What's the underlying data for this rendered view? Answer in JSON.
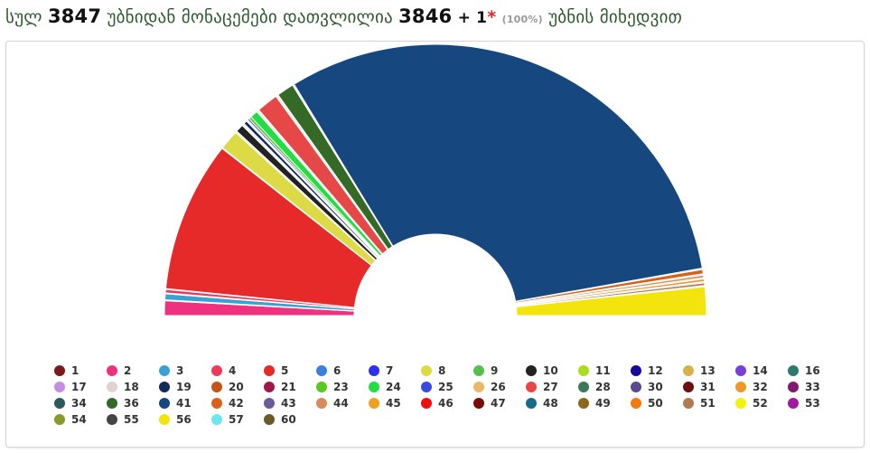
{
  "header": {
    "w1": "სულ",
    "total_districts": "3847",
    "w2": "უბნიდან მონაცემები დათვლილია",
    "counted": "3846",
    "plus": "+ 1",
    "star": "*",
    "percent": "(100%)",
    "w3": "უბნის მიხედვით"
  },
  "chart_data": {
    "type": "pie",
    "shape": "half-donut",
    "start": "left",
    "series": [
      {
        "name": "2",
        "value": 1.7,
        "color": "#f0317f"
      },
      {
        "name": "",
        "value": 0.1,
        "color": "#f7a8c4"
      },
      {
        "name": "3",
        "value": 0.7,
        "color": "#3aa2d2"
      },
      {
        "name": "",
        "value": 0.1,
        "color": "#f7a8c4"
      },
      {
        "name": "4",
        "value": 0.4,
        "color": "#ee3a5a"
      },
      {
        "name": "",
        "value": 0.1,
        "color": "#f7a8c4"
      },
      {
        "name": "5",
        "value": 17.5,
        "color": "#e62a2a"
      },
      {
        "name": "",
        "value": 0.1,
        "color": "#f7a8c4"
      },
      {
        "name": "8",
        "value": 2.3,
        "color": "#dcdb46"
      },
      {
        "name": "",
        "value": 0.2,
        "color": "#dddddd"
      },
      {
        "name": "10",
        "value": 0.9,
        "color": "#222222"
      },
      {
        "name": "",
        "value": 0.3,
        "color": "#f0f0f0"
      },
      {
        "name": "19",
        "value": 0.4,
        "color": "#102a5a"
      },
      {
        "name": "",
        "value": 0.2,
        "color": "#f0f0f0"
      },
      {
        "name": "7",
        "value": 0.2,
        "color": "#2f2ff0"
      },
      {
        "name": "23",
        "value": 0.3,
        "color": "#58c91f"
      },
      {
        "name": "24",
        "value": 0.9,
        "color": "#22dd44"
      },
      {
        "name": "",
        "value": 0.3,
        "color": "#f0f0f0"
      },
      {
        "name": "27",
        "value": 2.5,
        "color": "#e64848"
      },
      {
        "name": "",
        "value": 0.3,
        "color": "#f0f0f0"
      },
      {
        "name": "36",
        "value": 2.0,
        "color": "#346a26"
      },
      {
        "name": "",
        "value": 0.2,
        "color": "#f0f0f0"
      },
      {
        "name": "41",
        "value": 60.3,
        "color": "#17477f"
      },
      {
        "name": "",
        "value": 0.15,
        "color": "#dddddd"
      },
      {
        "name": "42",
        "value": 0.5,
        "color": "#d9621a"
      },
      {
        "name": "",
        "value": 0.15,
        "color": "#dddddd"
      },
      {
        "name": "44",
        "value": 0.3,
        "color": "#d88a5a"
      },
      {
        "name": "",
        "value": 0.15,
        "color": "#dddddd"
      },
      {
        "name": "32",
        "value": 0.3,
        "color": "#eb9a2a"
      },
      {
        "name": "",
        "value": 0.15,
        "color": "#dddddd"
      },
      {
        "name": "51",
        "value": 0.3,
        "color": "#b07a52"
      },
      {
        "name": "",
        "value": 0.15,
        "color": "#dddddd"
      },
      {
        "name": "56",
        "value": 3.3,
        "color": "#f2e40c"
      }
    ]
  },
  "legend": [
    {
      "label": "1",
      "color": "#7b1a1a"
    },
    {
      "label": "2",
      "color": "#f0317f"
    },
    {
      "label": "3",
      "color": "#3aa2d2"
    },
    {
      "label": "4",
      "color": "#ee3a5a"
    },
    {
      "label": "5",
      "color": "#e62a2a"
    },
    {
      "label": "6",
      "color": "#3d7fdc"
    },
    {
      "label": "7",
      "color": "#2f2ff0"
    },
    {
      "label": "8",
      "color": "#dcdb46"
    },
    {
      "label": "9",
      "color": "#55c04a"
    },
    {
      "label": "10",
      "color": "#222222"
    },
    {
      "label": "11",
      "color": "#a8de1e"
    },
    {
      "label": "12",
      "color": "#1a0a9a"
    },
    {
      "label": "13",
      "color": "#d7b14a"
    },
    {
      "label": "14",
      "color": "#7a3fd8"
    },
    {
      "label": "16",
      "color": "#2e7a6a"
    },
    {
      "label": "17",
      "color": "#c48fe0"
    },
    {
      "label": "18",
      "color": "#e0d2d0"
    },
    {
      "label": "19",
      "color": "#102a5a"
    },
    {
      "label": "20",
      "color": "#c65418"
    },
    {
      "label": "21",
      "color": "#a0184a"
    },
    {
      "label": "23",
      "color": "#58c91f"
    },
    {
      "label": "24",
      "color": "#22dd44"
    },
    {
      "label": "25",
      "color": "#3a4ae0"
    },
    {
      "label": "26",
      "color": "#eab868"
    },
    {
      "label": "27",
      "color": "#e64848"
    },
    {
      "label": "28",
      "color": "#3a7a5a"
    },
    {
      "label": "30",
      "color": "#5a4a8a"
    },
    {
      "label": "31",
      "color": "#6a1010"
    },
    {
      "label": "32",
      "color": "#eb9a2a"
    },
    {
      "label": "33",
      "color": "#801a70"
    },
    {
      "label": "34",
      "color": "#2a5a5a"
    },
    {
      "label": "36",
      "color": "#346a26"
    },
    {
      "label": "41",
      "color": "#17477f"
    },
    {
      "label": "42",
      "color": "#d9621a"
    },
    {
      "label": "43",
      "color": "#6a5a9a"
    },
    {
      "label": "44",
      "color": "#d88a5a"
    },
    {
      "label": "45",
      "color": "#f0a020"
    },
    {
      "label": "46",
      "color": "#ee1010"
    },
    {
      "label": "47",
      "color": "#7a0a0a"
    },
    {
      "label": "48",
      "color": "#1a6a8a"
    },
    {
      "label": "49",
      "color": "#8a6a1a"
    },
    {
      "label": "50",
      "color": "#f27a12"
    },
    {
      "label": "51",
      "color": "#b07a52"
    },
    {
      "label": "52",
      "color": "#f2f20c"
    },
    {
      "label": "53",
      "color": "#a01aa0"
    },
    {
      "label": "54",
      "color": "#8a9a2a"
    },
    {
      "label": "55",
      "color": "#444444"
    },
    {
      "label": "56",
      "color": "#f2e40c"
    },
    {
      "label": "57",
      "color": "#6ae8f2"
    },
    {
      "label": "60",
      "color": "#6a5a2a"
    }
  ]
}
